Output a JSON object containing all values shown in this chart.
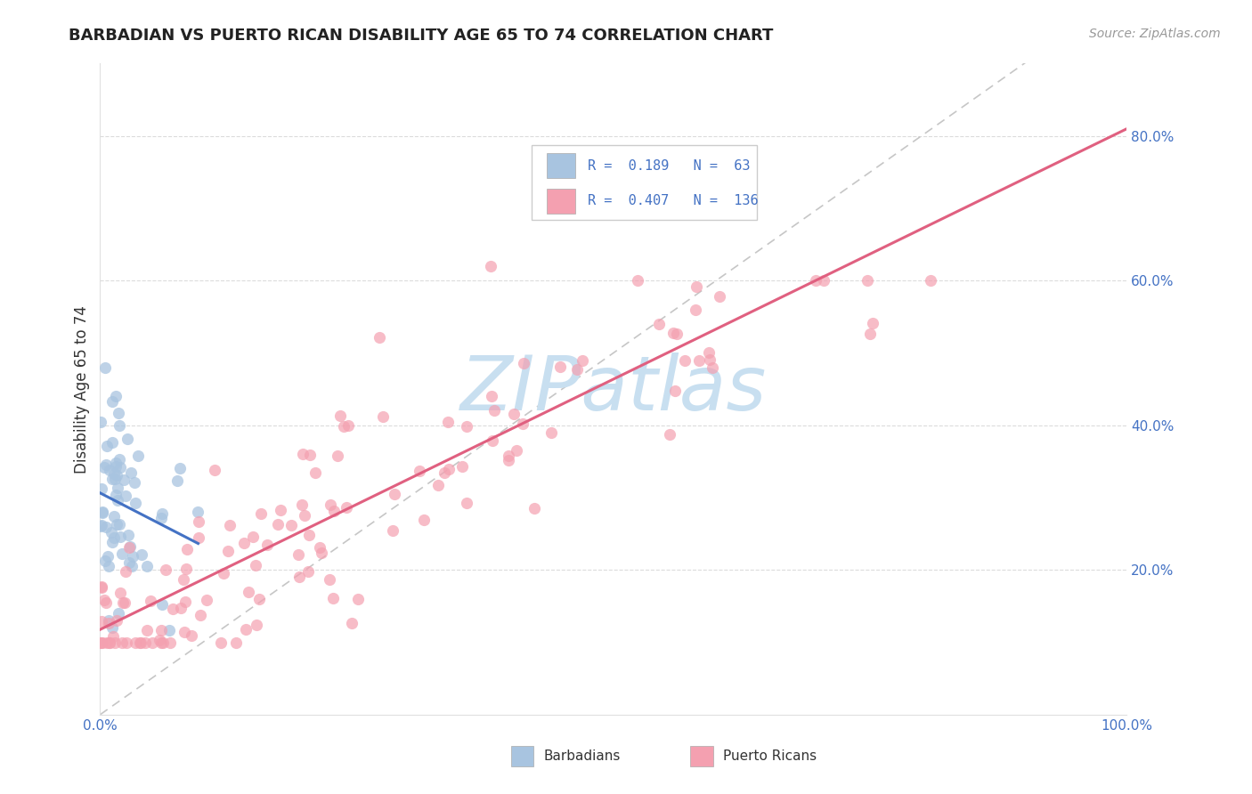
{
  "title": "BARBADIAN VS PUERTO RICAN DISABILITY AGE 65 TO 74 CORRELATION CHART",
  "source": "Source: ZipAtlas.com",
  "ylabel": "Disability Age 65 to 74",
  "barbadian_R": 0.189,
  "barbadian_N": 63,
  "puerto_rican_R": 0.407,
  "puerto_rican_N": 136,
  "xlim": [
    0.0,
    1.0
  ],
  "ylim": [
    0.0,
    0.9
  ],
  "xtick_labels_left": [
    "0.0%"
  ],
  "xtick_vals_left": [
    0.0
  ],
  "xtick_labels_right": [
    "100.0%"
  ],
  "xtick_vals_right": [
    1.0
  ],
  "ytick_labels_right": [
    "20.0%",
    "40.0%",
    "60.0%",
    "80.0%"
  ],
  "ytick_vals": [
    0.2,
    0.4,
    0.6,
    0.8
  ],
  "barbadian_color": "#a8c4e0",
  "puerto_rican_color": "#f4a0b0",
  "barbadian_line_color": "#4472c4",
  "puerto_rican_line_color": "#e06080",
  "diagonal_color": "#c0c0c0",
  "watermark_text": "ZIPatlas",
  "watermark_color": "#c8dff0",
  "tick_color": "#4472c4",
  "background_color": "#ffffff",
  "grid_color": "#d8d8d8",
  "legend_label_1": "R =  0.189   N =  63",
  "legend_label_2": "R =  0.407   N =  136",
  "bottom_legend_barbadians": "Barbadians",
  "bottom_legend_puertoricans": "Puerto Ricans"
}
